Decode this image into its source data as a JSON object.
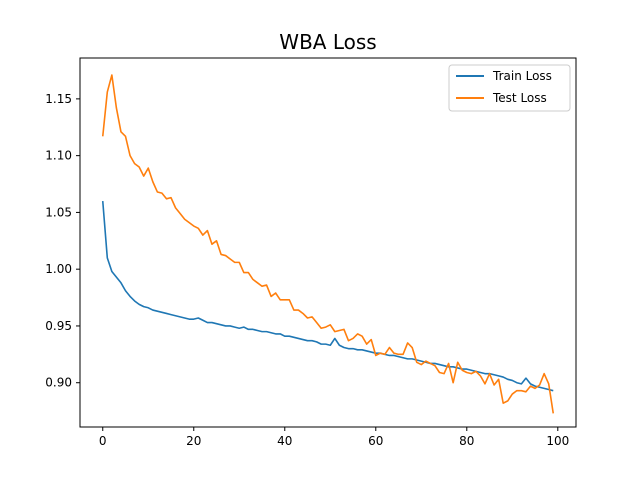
{
  "chart_data": {
    "type": "line",
    "title": "WBA Loss",
    "xlabel": "",
    "ylabel": "",
    "xlim": [
      -5,
      104
    ],
    "ylim": [
      0.861,
      1.186
    ],
    "xticks": [
      0,
      20,
      40,
      60,
      80,
      100
    ],
    "yticks": [
      0.9,
      0.95,
      1.0,
      1.05,
      1.1,
      1.15
    ],
    "ytick_labels": [
      "0.90",
      "0.95",
      "1.00",
      "1.05",
      "1.10",
      "1.15"
    ],
    "grid": false,
    "legend_position": "top-right",
    "x": [
      0,
      1,
      2,
      3,
      4,
      5,
      6,
      7,
      8,
      9,
      10,
      11,
      12,
      13,
      14,
      15,
      16,
      17,
      18,
      19,
      20,
      21,
      22,
      23,
      24,
      25,
      26,
      27,
      28,
      29,
      30,
      31,
      32,
      33,
      34,
      35,
      36,
      37,
      38,
      39,
      40,
      41,
      42,
      43,
      44,
      45,
      46,
      47,
      48,
      49,
      50,
      51,
      52,
      53,
      54,
      55,
      56,
      57,
      58,
      59,
      60,
      61,
      62,
      63,
      64,
      65,
      66,
      67,
      68,
      69,
      70,
      71,
      72,
      73,
      74,
      75,
      76,
      77,
      78,
      79,
      80,
      81,
      82,
      83,
      84,
      85,
      86,
      87,
      88,
      89,
      90,
      91,
      92,
      93,
      94,
      95,
      96,
      97,
      98,
      99
    ],
    "series": [
      {
        "name": "Train Loss",
        "color": "#1f77b4",
        "values": [
          1.06,
          1.01,
          0.998,
          0.993,
          0.988,
          0.981,
          0.976,
          0.972,
          0.969,
          0.967,
          0.966,
          0.964,
          0.963,
          0.962,
          0.961,
          0.96,
          0.959,
          0.958,
          0.957,
          0.956,
          0.956,
          0.957,
          0.955,
          0.953,
          0.953,
          0.952,
          0.951,
          0.95,
          0.95,
          0.949,
          0.948,
          0.949,
          0.947,
          0.947,
          0.946,
          0.945,
          0.945,
          0.944,
          0.943,
          0.943,
          0.941,
          0.941,
          0.94,
          0.939,
          0.938,
          0.937,
          0.937,
          0.936,
          0.934,
          0.934,
          0.933,
          0.939,
          0.933,
          0.931,
          0.93,
          0.93,
          0.929,
          0.929,
          0.928,
          0.927,
          0.926,
          0.926,
          0.925,
          0.924,
          0.924,
          0.923,
          0.922,
          0.921,
          0.921,
          0.92,
          0.919,
          0.918,
          0.917,
          0.917,
          0.916,
          0.915,
          0.914,
          0.914,
          0.913,
          0.912,
          0.912,
          0.911,
          0.91,
          0.909,
          0.908,
          0.908,
          0.907,
          0.906,
          0.905,
          0.903,
          0.902,
          0.9,
          0.899,
          0.904,
          0.899,
          0.897,
          0.896,
          0.895,
          0.894,
          0.893
        ]
      },
      {
        "name": "Test Loss",
        "color": "#ff7f0e",
        "values": [
          1.117,
          1.156,
          1.171,
          1.142,
          1.121,
          1.117,
          1.1,
          1.093,
          1.09,
          1.082,
          1.089,
          1.077,
          1.068,
          1.067,
          1.062,
          1.063,
          1.054,
          1.049,
          1.044,
          1.041,
          1.038,
          1.036,
          1.03,
          1.034,
          1.022,
          1.025,
          1.013,
          1.012,
          1.009,
          1.006,
          1.006,
          0.997,
          0.997,
          0.991,
          0.988,
          0.985,
          0.986,
          0.976,
          0.979,
          0.973,
          0.973,
          0.973,
          0.964,
          0.964,
          0.961,
          0.957,
          0.958,
          0.953,
          0.948,
          0.949,
          0.951,
          0.945,
          0.946,
          0.947,
          0.937,
          0.939,
          0.943,
          0.941,
          0.934,
          0.938,
          0.924,
          0.926,
          0.925,
          0.931,
          0.926,
          0.925,
          0.925,
          0.935,
          0.931,
          0.918,
          0.916,
          0.919,
          0.917,
          0.915,
          0.909,
          0.908,
          0.917,
          0.9,
          0.918,
          0.911,
          0.909,
          0.908,
          0.91,
          0.906,
          0.899,
          0.908,
          0.898,
          0.903,
          0.882,
          0.884,
          0.89,
          0.893,
          0.893,
          0.892,
          0.897,
          0.895,
          0.898,
          0.908,
          0.899,
          0.873
        ]
      }
    ]
  }
}
